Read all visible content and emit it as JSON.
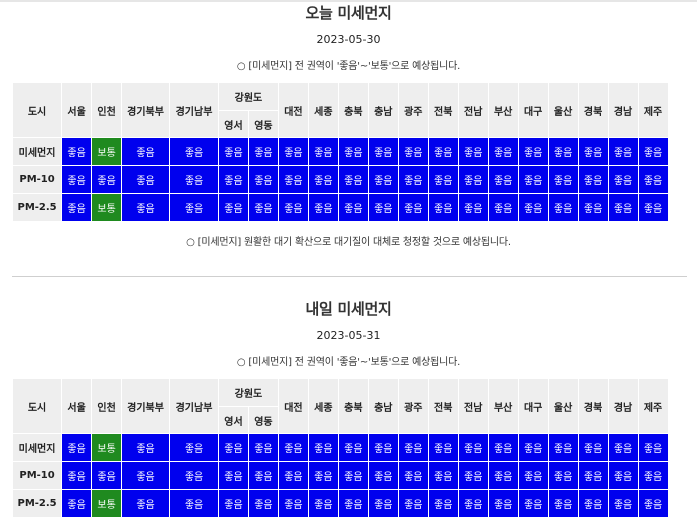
{
  "colors": {
    "good": "#0000ee",
    "normal": "#1f8a1f",
    "header_bg": "#eeeeee"
  },
  "header": {
    "city": "도시",
    "gangwon": "강원도",
    "gangwon_sub": [
      "영서",
      "영동"
    ],
    "cols_before": [
      "서울",
      "인천",
      "경기북부",
      "경기남부"
    ],
    "cols_after": [
      "대전",
      "세종",
      "충북",
      "충남",
      "광주",
      "전북",
      "전남",
      "부산",
      "대구",
      "울산",
      "경북",
      "경남",
      "제주"
    ]
  },
  "sections": [
    {
      "title": "오늘 미세먼지",
      "date": "2023-05-30",
      "note_top": "○ [미세먼지] 전 권역이 '좋음'~'보통'으로 예상됩니다.",
      "note_bottom": "○ [미세먼지] 원활한 대기 확산으로 대기질이 대체로 청정할 것으로 예상됩니다.",
      "rows": [
        {
          "label": "미세먼지",
          "values": [
            "좋음",
            "보통",
            "좋음",
            "좋음",
            "좋음",
            "좋음",
            "좋음",
            "좋음",
            "좋음",
            "좋음",
            "좋음",
            "좋음",
            "좋음",
            "좋음",
            "좋음",
            "좋음",
            "좋음",
            "좋음",
            "좋음"
          ]
        },
        {
          "label": "PM-10",
          "values": [
            "좋음",
            "좋음",
            "좋음",
            "좋음",
            "좋음",
            "좋음",
            "좋음",
            "좋음",
            "좋음",
            "좋음",
            "좋음",
            "좋음",
            "좋음",
            "좋음",
            "좋음",
            "좋음",
            "좋음",
            "좋음",
            "좋음"
          ]
        },
        {
          "label": "PM-2.5",
          "values": [
            "좋음",
            "보통",
            "좋음",
            "좋음",
            "좋음",
            "좋음",
            "좋음",
            "좋음",
            "좋음",
            "좋음",
            "좋음",
            "좋음",
            "좋음",
            "좋음",
            "좋음",
            "좋음",
            "좋음",
            "좋음",
            "좋음"
          ]
        }
      ]
    },
    {
      "title": "내일 미세먼지",
      "date": "2023-05-31",
      "note_top": "○ [미세먼지] 전 권역이 '좋음'~'보통'으로 예상됩니다.",
      "note_bottom": "",
      "rows": [
        {
          "label": "미세먼지",
          "values": [
            "좋음",
            "보통",
            "좋음",
            "좋음",
            "좋음",
            "좋음",
            "좋음",
            "좋음",
            "좋음",
            "좋음",
            "좋음",
            "좋음",
            "좋음",
            "좋음",
            "좋음",
            "좋음",
            "좋음",
            "좋음",
            "좋음"
          ]
        },
        {
          "label": "PM-10",
          "values": [
            "좋음",
            "좋음",
            "좋음",
            "좋음",
            "좋음",
            "좋음",
            "좋음",
            "좋음",
            "좋음",
            "좋음",
            "좋음",
            "좋음",
            "좋음",
            "좋음",
            "좋음",
            "좋음",
            "좋음",
            "좋음",
            "좋음"
          ]
        },
        {
          "label": "PM-2.5",
          "values": [
            "좋음",
            "보통",
            "좋음",
            "좋음",
            "좋음",
            "좋음",
            "좋음",
            "좋음",
            "좋음",
            "좋음",
            "좋음",
            "좋음",
            "좋음",
            "좋음",
            "좋음",
            "좋음",
            "좋음",
            "좋음",
            "좋음"
          ]
        }
      ]
    }
  ]
}
